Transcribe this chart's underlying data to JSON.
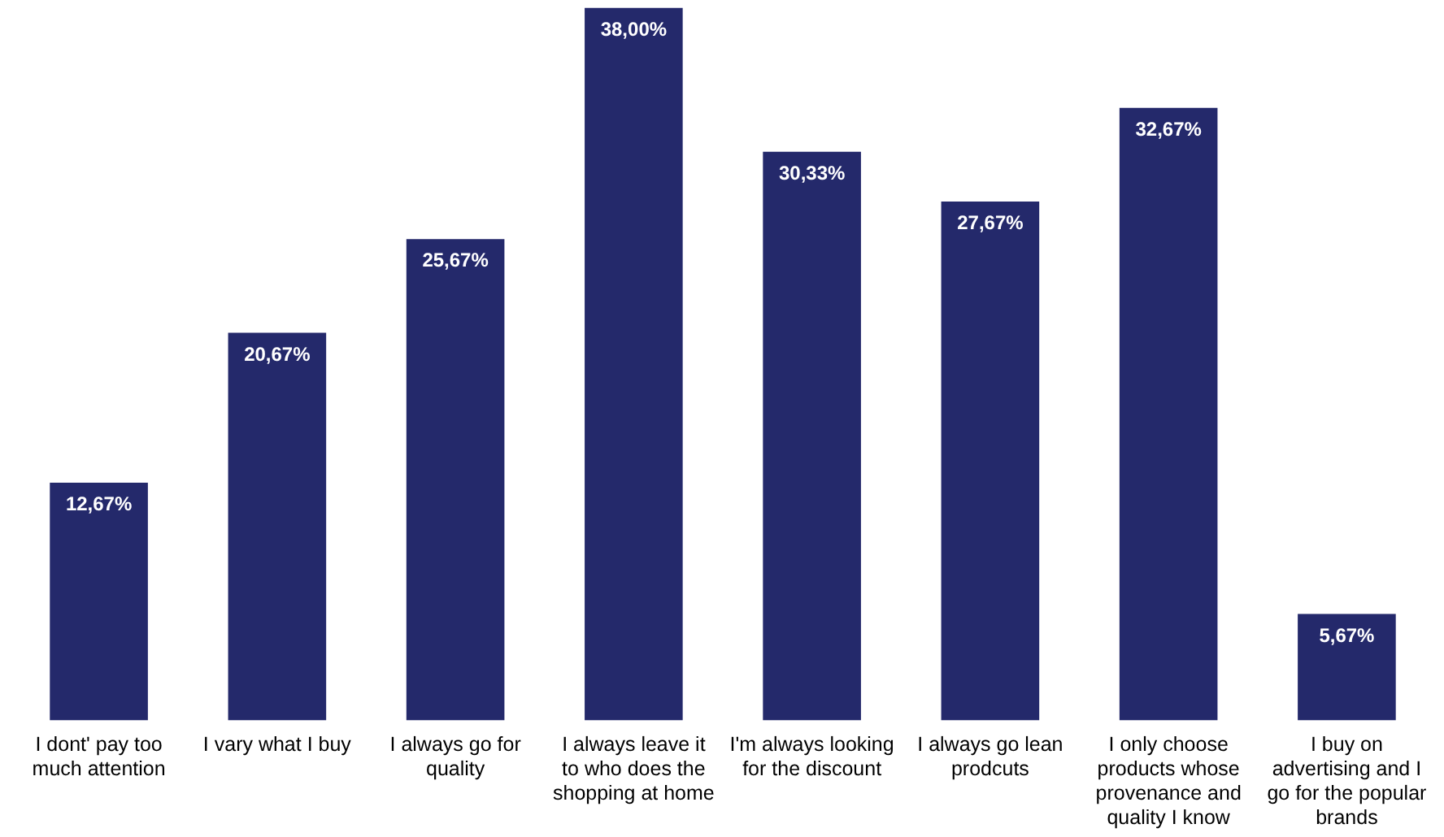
{
  "chart_data": {
    "type": "bar",
    "categories": [
      "I dont' pay too much attention",
      "I vary what I buy",
      "I always go for quality",
      "I always leave it to who does the shopping at home",
      "I'm always looking for the discount",
      "I always go lean prodcuts",
      "I only choose products whose provenance and quality I know",
      "I buy on advertising and I go for the popular brands"
    ],
    "values": [
      12.67,
      20.67,
      25.67,
      38.0,
      30.33,
      27.67,
      32.67,
      5.67
    ],
    "value_labels": [
      "12,67%",
      "20,67%",
      "25,67%",
      "38,00%",
      "30,33%",
      "27,67%",
      "32,67%",
      "5,67%"
    ],
    "color": "#24296b"
  }
}
